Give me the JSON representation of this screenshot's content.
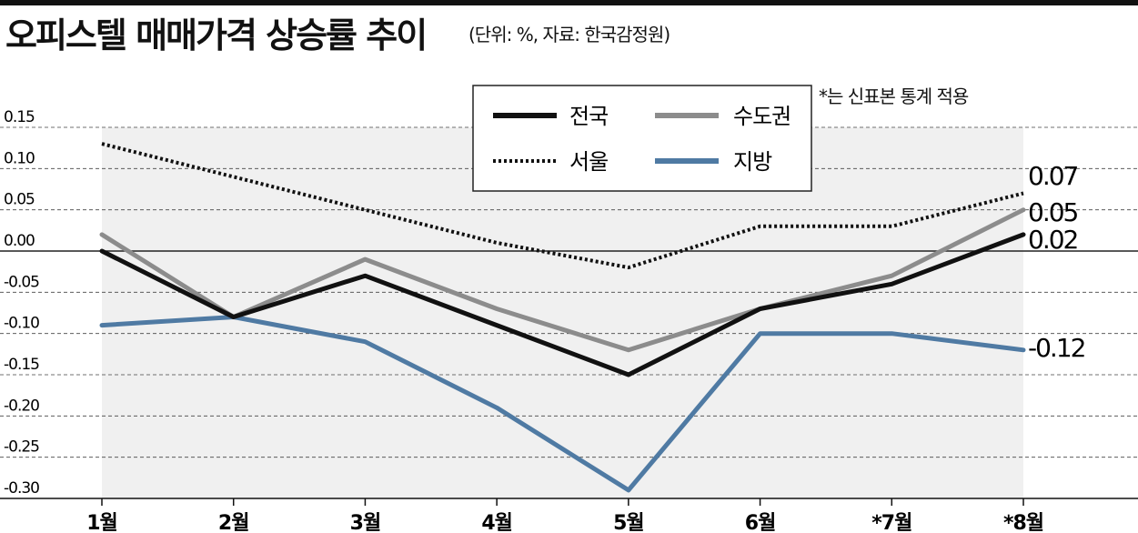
{
  "header": {
    "title": "오피스텔 매매가격 상승률 추이",
    "subtitle": "(단위: %, 자료: 한국감정원)",
    "note": "*는 신표본 통계 적용"
  },
  "chart_data": {
    "type": "line",
    "categories": [
      "1월",
      "2월",
      "3월",
      "4월",
      "5월",
      "6월",
      "*7월",
      "*8월"
    ],
    "yticks": [
      "0.15",
      "0.10",
      "0.05",
      "0.00",
      "-0.05",
      "-0.10",
      "-0.15",
      "-0.20",
      "-0.25",
      "-0.30"
    ],
    "ylim": [
      -0.3,
      0.15
    ],
    "series": [
      {
        "name": "전국",
        "color": "#111111",
        "style": "solid",
        "values": [
          0.0,
          -0.08,
          -0.03,
          -0.09,
          -0.15,
          -0.07,
          -0.04,
          0.02
        ],
        "end_label": "0.02"
      },
      {
        "name": "수도권",
        "color": "#8c8c8c",
        "style": "solid",
        "values": [
          0.02,
          -0.08,
          -0.01,
          -0.07,
          -0.12,
          -0.07,
          -0.03,
          0.05
        ],
        "end_label": "0.05"
      },
      {
        "name": "서울",
        "color": "#111111",
        "style": "dotted",
        "values": [
          0.13,
          0.09,
          0.05,
          0.01,
          -0.02,
          0.03,
          0.03,
          0.07
        ],
        "end_label": "0.07"
      },
      {
        "name": "지방",
        "color": "#4f7aa3",
        "style": "solid",
        "values": [
          -0.09,
          -0.08,
          -0.11,
          -0.19,
          -0.29,
          -0.1,
          -0.1,
          -0.12
        ],
        "end_label": "-0.12"
      }
    ],
    "legend_position": "top-center",
    "shaded_area": true,
    "grid": true
  }
}
